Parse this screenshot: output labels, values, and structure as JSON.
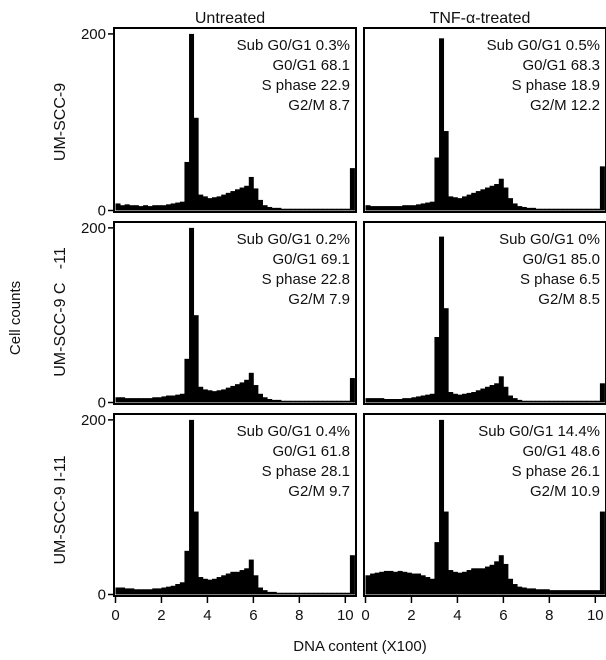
{
  "figure": {
    "column_titles": [
      "Untreated",
      "TNF-α-treated"
    ],
    "row_labels": [
      "UM-SCC-9",
      "UM-SCC-9 C   -11",
      "UM-SCC-9 I-11"
    ],
    "ylabel": "Cell counts",
    "xlabel": "DNA content (X100)"
  },
  "chart_data": {
    "type": "histogram-grid",
    "xlabel": "DNA content (X100)",
    "ylabel": "Cell counts",
    "xlim": [
      0,
      10.4
    ],
    "ylim": [
      0,
      205
    ],
    "xticks": [
      0,
      2,
      4,
      6,
      8,
      10
    ],
    "yticks": [
      0,
      200
    ],
    "x_centers": [
      0.1,
      0.3,
      0.5,
      0.7,
      0.9,
      1.1,
      1.3,
      1.5,
      1.7,
      1.9,
      2.1,
      2.3,
      2.5,
      2.7,
      2.9,
      3.1,
      3.3,
      3.5,
      3.7,
      3.9,
      4.1,
      4.3,
      4.5,
      4.7,
      4.9,
      5.1,
      5.3,
      5.5,
      5.7,
      5.9,
      6.1,
      6.3,
      6.5,
      6.7,
      6.9,
      7.1,
      7.3,
      7.5,
      7.7,
      7.9,
      8.1,
      8.3,
      8.5,
      8.7,
      8.9,
      9.1,
      9.3,
      9.5,
      9.7,
      9.9,
      10.1,
      10.3
    ],
    "panels": [
      {
        "row": "UM-SCC-9",
        "column": "Untreated",
        "annotations": [
          "Sub G0/G1 0.3%",
          "G0/G1 68.1",
          "S phase 22.9",
          "G2/M 8.7"
        ],
        "counts": [
          8,
          6,
          7,
          6,
          6,
          5,
          6,
          5,
          6,
          6,
          6,
          7,
          8,
          9,
          10,
          55,
          200,
          105,
          18,
          16,
          14,
          15,
          16,
          18,
          20,
          22,
          24,
          26,
          28,
          38,
          25,
          12,
          6,
          4,
          3,
          3,
          2,
          2,
          2,
          2,
          2,
          2,
          2,
          2,
          2,
          2,
          2,
          2,
          2,
          2,
          2,
          48
        ]
      },
      {
        "row": "UM-SCC-9",
        "column": "TNF-α-treated",
        "annotations": [
          "Sub G0/G1 0.5%",
          "G0/G1 68.3",
          "S phase 18.9",
          "G2/M 12.2"
        ],
        "counts": [
          6,
          5,
          5,
          5,
          5,
          5,
          5,
          5,
          6,
          6,
          6,
          7,
          8,
          9,
          10,
          60,
          195,
          90,
          16,
          15,
          14,
          16,
          18,
          20,
          22,
          24,
          26,
          28,
          30,
          36,
          26,
          14,
          8,
          5,
          4,
          3,
          3,
          2,
          2,
          2,
          2,
          2,
          2,
          2,
          2,
          2,
          2,
          2,
          2,
          2,
          2,
          50
        ]
      },
      {
        "row": "UM-SCC-9 C   -11",
        "column": "Untreated",
        "annotations": [
          "Sub G0/G1 0.2%",
          "G0/G1 69.1",
          "S phase 22.8",
          "G2/M 7.9"
        ],
        "counts": [
          6,
          6,
          5,
          5,
          5,
          5,
          5,
          5,
          6,
          6,
          7,
          8,
          8,
          9,
          10,
          50,
          200,
          100,
          18,
          15,
          14,
          13,
          14,
          15,
          17,
          19,
          21,
          23,
          26,
          34,
          20,
          10,
          6,
          4,
          3,
          3,
          2,
          2,
          2,
          2,
          2,
          2,
          2,
          2,
          2,
          2,
          2,
          2,
          2,
          2,
          2,
          28
        ]
      },
      {
        "row": "UM-SCC-9 C   -11",
        "column": "TNF-α-treated",
        "annotations": [
          "Sub G0/G1 0%",
          "G0/G1 85.0",
          "S phase 6.5",
          "G2/M 8.5"
        ],
        "counts": [
          5,
          5,
          5,
          5,
          4,
          4,
          4,
          4,
          5,
          5,
          6,
          7,
          8,
          9,
          10,
          75,
          190,
          108,
          12,
          10,
          9,
          10,
          11,
          12,
          14,
          16,
          18,
          20,
          22,
          30,
          18,
          8,
          5,
          3,
          2,
          2,
          2,
          2,
          2,
          2,
          2,
          2,
          2,
          2,
          2,
          2,
          2,
          2,
          2,
          2,
          2,
          22
        ]
      },
      {
        "row": "UM-SCC-9 I-11",
        "column": "Untreated",
        "annotations": [
          "Sub G0/G1 0.4%",
          "G0/G1 61.8",
          "S phase 28.1",
          "G2/M 9.7"
        ],
        "counts": [
          8,
          8,
          7,
          7,
          6,
          6,
          6,
          6,
          7,
          7,
          8,
          9,
          10,
          12,
          14,
          50,
          200,
          95,
          20,
          18,
          17,
          18,
          20,
          22,
          24,
          26,
          26,
          28,
          30,
          40,
          22,
          8,
          5,
          3,
          3,
          2,
          2,
          2,
          2,
          2,
          2,
          2,
          2,
          2,
          2,
          2,
          2,
          2,
          2,
          2,
          2,
          45
        ]
      },
      {
        "row": "UM-SCC-9 I-11",
        "column": "TNF-α-treated",
        "annotations": [
          "Sub G0/G1 14.4%",
          "G0/G1 48.6",
          "S phase 26.1",
          "G2/M 10.9"
        ],
        "counts": [
          22,
          24,
          25,
          26,
          27,
          27,
          26,
          27,
          26,
          25,
          24,
          24,
          22,
          20,
          18,
          60,
          200,
          95,
          28,
          26,
          25,
          26,
          28,
          30,
          30,
          30,
          32,
          34,
          38,
          45,
          35,
          18,
          12,
          9,
          8,
          7,
          7,
          6,
          6,
          6,
          5,
          5,
          5,
          5,
          5,
          5,
          5,
          5,
          5,
          5,
          5,
          95
        ]
      }
    ]
  }
}
